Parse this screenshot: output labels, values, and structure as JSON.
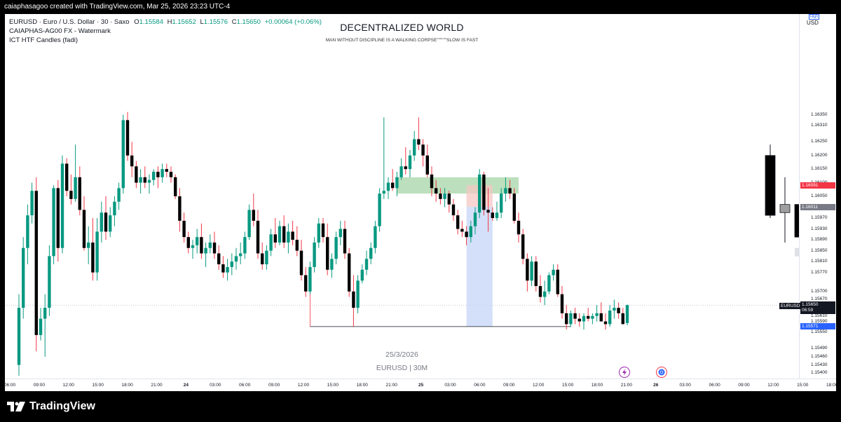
{
  "header": {
    "caption": "caiaphasagoo created with TradingView.com, Mar 25, 2026 23:23 UTC-4"
  },
  "legend": {
    "symbol": "EURUSD · Euro / U.S. Dollar · 30 · Saxo",
    "o_label": "O",
    "o_value": "1.15584",
    "h_label": "H",
    "h_value": "1.15652",
    "l_label": "L",
    "l_value": "1.15576",
    "c_label": "C",
    "c_value": "1.15650",
    "change": "+0.00064 (+0.06%)",
    "indicator1": "CAIAPHAS-AG00  FX - Watermark",
    "indicator2": "ICT HTF Candles (fadi)"
  },
  "watermark": {
    "title": "DECENTRALIZED WORLD",
    "subtitle": "MAN WITHOUT DISCIPLINE IS A WALKING CORPSE\"\"\"\"\"\"SLOW IS FAST",
    "date": "25/3/2026",
    "symbol_tf": "EURUSD | 30M"
  },
  "price_axis": {
    "currency": "USD",
    "high_badge": "High",
    "tags": {
      "red": {
        "value": "1.16091",
        "color": "#f23645"
      },
      "grey": {
        "value": "1.16011",
        "color": "#787b86"
      },
      "current_symbol": "EURUSD",
      "current_value": "1.15650",
      "countdown": "06:59",
      "blue": {
        "value": "1.15571",
        "color": "#2962ff"
      }
    }
  },
  "brand": {
    "name": "TradingView"
  },
  "events": [
    {
      "icon": "lightning-icon"
    },
    {
      "icon": "earnings-globe-icon"
    }
  ],
  "chart_data": {
    "type": "candlestick",
    "symbol": "EURUSD",
    "timeframe": "30",
    "colors": {
      "up": "#089981",
      "down": "#000000",
      "wick_up": "#089981",
      "wick_down": "#f23645",
      "htf_up": "#9e9e9e"
    },
    "ylim": [
      1.1538,
      1.1672
    ],
    "y_ticks": [
      "1.16350",
      "1.16310",
      "1.16250",
      "1.16200",
      "1.16150",
      "1.16100",
      "1.16050",
      "1.15970",
      "1.15930",
      "1.15890",
      "1.15850",
      "1.15810",
      "1.15770",
      "1.15700",
      "1.15670",
      "1.15610",
      "1.15590",
      "1.15550",
      "1.15490",
      "1.15460",
      "1.15430",
      "1.15400"
    ],
    "x_ticks": [
      "06:00",
      "09:00",
      "12:00",
      "15:00",
      "18:00",
      "21:00",
      "24",
      "03:00",
      "06:00",
      "09:00",
      "12:00",
      "15:00",
      "18:00",
      "21:00",
      "25",
      "03:00",
      "06:00",
      "09:00",
      "12:00",
      "15:00",
      "18:00",
      "21:00",
      "26",
      "03:00",
      "06:00",
      "09:00",
      "12:00",
      "15:00",
      "18:00"
    ],
    "x_ticks_bold": [
      "24",
      "25",
      "26"
    ],
    "candles": [
      [
        1.1543,
        1.1569,
        1.1539,
        1.1564
      ],
      [
        1.1564,
        1.159,
        1.156,
        1.1586
      ],
      [
        1.1586,
        1.1602,
        1.158,
        1.1598
      ],
      [
        1.1598,
        1.161,
        1.1595,
        1.1607
      ],
      [
        1.1607,
        1.1612,
        1.1548,
        1.1554
      ],
      [
        1.1554,
        1.1564,
        1.1552,
        1.156
      ],
      [
        1.156,
        1.1569,
        1.1546,
        1.1564
      ],
      [
        1.1564,
        1.1587,
        1.1561,
        1.1583
      ],
      [
        1.1583,
        1.1609,
        1.158,
        1.1608
      ],
      [
        1.1608,
        1.1611,
        1.1581,
        1.1586
      ],
      [
        1.1586,
        1.162,
        1.1584,
        1.1617
      ],
      [
        1.1617,
        1.1619,
        1.1605,
        1.1607
      ],
      [
        1.1607,
        1.1613,
        1.1602,
        1.1604
      ],
      [
        1.1604,
        1.1624,
        1.1603,
        1.1612
      ],
      [
        1.1612,
        1.1616,
        1.1598,
        1.16
      ],
      [
        1.16,
        1.1605,
        1.1585,
        1.1586
      ],
      [
        1.1586,
        1.1594,
        1.158,
        1.1588
      ],
      [
        1.1588,
        1.1597,
        1.1574,
        1.1577
      ],
      [
        1.1577,
        1.1597,
        1.1574,
        1.1592
      ],
      [
        1.1592,
        1.1603,
        1.1588,
        1.1599
      ],
      [
        1.1599,
        1.1605,
        1.1589,
        1.1592
      ],
      [
        1.1592,
        1.1601,
        1.159,
        1.1598
      ],
      [
        1.1598,
        1.1605,
        1.1594,
        1.1603
      ],
      [
        1.1603,
        1.161,
        1.16,
        1.1608
      ],
      [
        1.1608,
        1.1635,
        1.1606,
        1.1633
      ],
      [
        1.1633,
        1.1636,
        1.1618,
        1.162
      ],
      [
        1.162,
        1.1625,
        1.1612,
        1.1616
      ],
      [
        1.1616,
        1.1618,
        1.1608,
        1.161
      ],
      [
        1.161,
        1.1615,
        1.1606,
        1.1612
      ],
      [
        1.1612,
        1.1616,
        1.1608,
        1.161
      ],
      [
        1.161,
        1.1613,
        1.1606,
        1.1611
      ],
      [
        1.1611,
        1.1615,
        1.1609,
        1.1614
      ],
      [
        1.1614,
        1.1616,
        1.1608,
        1.1612
      ],
      [
        1.1612,
        1.1617,
        1.161,
        1.1615
      ],
      [
        1.1615,
        1.1617,
        1.1612,
        1.1614
      ],
      [
        1.1614,
        1.1616,
        1.161,
        1.1612
      ],
      [
        1.1612,
        1.1613,
        1.1604,
        1.1605
      ],
      [
        1.1605,
        1.1608,
        1.1592,
        1.1596
      ],
      [
        1.1596,
        1.1599,
        1.1588,
        1.159
      ],
      [
        1.159,
        1.1592,
        1.1584,
        1.1586
      ],
      [
        1.1586,
        1.1589,
        1.1582,
        1.1587
      ],
      [
        1.1587,
        1.1593,
        1.1584,
        1.159
      ],
      [
        1.159,
        1.1595,
        1.1582,
        1.1584
      ],
      [
        1.1584,
        1.1588,
        1.1579,
        1.1586
      ],
      [
        1.1586,
        1.1591,
        1.1584,
        1.1588
      ],
      [
        1.1588,
        1.1592,
        1.1582,
        1.1584
      ],
      [
        1.1584,
        1.1587,
        1.1578,
        1.158
      ],
      [
        1.158,
        1.1583,
        1.1575,
        1.1577
      ],
      [
        1.1577,
        1.1582,
        1.1574,
        1.1579
      ],
      [
        1.1579,
        1.1584,
        1.1576,
        1.1581
      ],
      [
        1.1581,
        1.1586,
        1.1578,
        1.1583
      ],
      [
        1.1583,
        1.1588,
        1.158,
        1.1584
      ],
      [
        1.1584,
        1.1592,
        1.1582,
        1.159
      ],
      [
        1.159,
        1.1602,
        1.1589,
        1.16
      ],
      [
        1.16,
        1.1606,
        1.1594,
        1.1596
      ],
      [
        1.1596,
        1.16,
        1.1582,
        1.1584
      ],
      [
        1.1584,
        1.1588,
        1.1578,
        1.158
      ],
      [
        1.158,
        1.1587,
        1.1578,
        1.1585
      ],
      [
        1.1585,
        1.1593,
        1.1583,
        1.1591
      ],
      [
        1.1591,
        1.1597,
        1.1586,
        1.1588
      ],
      [
        1.1588,
        1.1596,
        1.1587,
        1.1594
      ],
      [
        1.1594,
        1.1598,
        1.1586,
        1.1588
      ],
      [
        1.1588,
        1.1595,
        1.1584,
        1.1592
      ],
      [
        1.1592,
        1.1596,
        1.1587,
        1.1589
      ],
      [
        1.1589,
        1.1594,
        1.1583,
        1.1585
      ],
      [
        1.1585,
        1.1589,
        1.1574,
        1.1576
      ],
      [
        1.1576,
        1.1579,
        1.1568,
        1.157
      ],
      [
        1.157,
        1.1581,
        1.1569,
        1.1579
      ],
      [
        1.1579,
        1.159,
        1.1577,
        1.1588
      ],
      [
        1.1588,
        1.1597,
        1.1586,
        1.1595
      ],
      [
        1.1595,
        1.1597,
        1.1588,
        1.159
      ],
      [
        1.159,
        1.1595,
        1.1576,
        1.1578
      ],
      [
        1.1578,
        1.1584,
        1.1575,
        1.1582
      ],
      [
        1.1582,
        1.1592,
        1.158,
        1.159
      ],
      [
        1.159,
        1.1596,
        1.1587,
        1.1593
      ],
      [
        1.1593,
        1.1596,
        1.1582,
        1.1584
      ],
      [
        1.1584,
        1.1586,
        1.1568,
        1.157
      ],
      [
        1.157,
        1.1576,
        1.1557,
        1.1564
      ],
      [
        1.1564,
        1.1576,
        1.1562,
        1.1574
      ],
      [
        1.1574,
        1.158,
        1.1573,
        1.1578
      ],
      [
        1.1578,
        1.1585,
        1.1576,
        1.1582
      ],
      [
        1.1582,
        1.1588,
        1.158,
        1.1586
      ],
      [
        1.1586,
        1.1596,
        1.1584,
        1.1594
      ],
      [
        1.1594,
        1.1608,
        1.1592,
        1.1606
      ],
      [
        1.1606,
        1.1634,
        1.1604,
        1.1607
      ],
      [
        1.1607,
        1.1612,
        1.1604,
        1.161
      ],
      [
        1.161,
        1.1615,
        1.1607,
        1.1608
      ],
      [
        1.1608,
        1.1614,
        1.1605,
        1.1612
      ],
      [
        1.1612,
        1.1619,
        1.1611,
        1.1616
      ],
      [
        1.1616,
        1.1623,
        1.1613,
        1.1615
      ],
      [
        1.1615,
        1.1622,
        1.1612,
        1.162
      ],
      [
        1.162,
        1.1629,
        1.1618,
        1.1626
      ],
      [
        1.1626,
        1.1634,
        1.1622,
        1.1624
      ],
      [
        1.1624,
        1.1626,
        1.1616,
        1.162
      ],
      [
        1.162,
        1.1624,
        1.1612,
        1.1613
      ],
      [
        1.1613,
        1.1616,
        1.1605,
        1.1608
      ],
      [
        1.1608,
        1.1611,
        1.1603,
        1.1606
      ],
      [
        1.1606,
        1.1608,
        1.1602,
        1.1604
      ],
      [
        1.1604,
        1.1608,
        1.1601,
        1.1606
      ],
      [
        1.1606,
        1.1607,
        1.1599,
        1.1602
      ],
      [
        1.1602,
        1.1604,
        1.1596,
        1.1598
      ],
      [
        1.1598,
        1.16,
        1.1591,
        1.1593
      ],
      [
        1.1593,
        1.1596,
        1.159,
        1.1592
      ],
      [
        1.1592,
        1.1594,
        1.1587,
        1.159
      ],
      [
        1.159,
        1.1596,
        1.1588,
        1.1594
      ],
      [
        1.1594,
        1.1601,
        1.1591,
        1.1599
      ],
      [
        1.1599,
        1.1615,
        1.1597,
        1.1613
      ],
      [
        1.1613,
        1.1614,
        1.1598,
        1.16
      ],
      [
        1.16,
        1.1608,
        1.1592,
        1.1599
      ],
      [
        1.1599,
        1.1601,
        1.1596,
        1.1597
      ],
      [
        1.1597,
        1.1603,
        1.1596,
        1.1599
      ],
      [
        1.1599,
        1.1608,
        1.1597,
        1.1606
      ],
      [
        1.1606,
        1.1612,
        1.1603,
        1.1608
      ],
      [
        1.1608,
        1.1611,
        1.1604,
        1.1606
      ],
      [
        1.1606,
        1.1608,
        1.1595,
        1.1596
      ],
      [
        1.1596,
        1.1599,
        1.1588,
        1.1591
      ],
      [
        1.1591,
        1.1593,
        1.158,
        1.1582
      ],
      [
        1.1582,
        1.1584,
        1.157,
        1.1574
      ],
      [
        1.1574,
        1.1583,
        1.1572,
        1.1581
      ],
      [
        1.1581,
        1.1583,
        1.157,
        1.1572
      ],
      [
        1.1572,
        1.1576,
        1.1566,
        1.1568
      ],
      [
        1.1568,
        1.1574,
        1.1565,
        1.157
      ],
      [
        1.157,
        1.1577,
        1.1569,
        1.1576
      ],
      [
        1.1576,
        1.158,
        1.1574,
        1.1578
      ],
      [
        1.1578,
        1.158,
        1.1568,
        1.1569
      ],
      [
        1.1569,
        1.1572,
        1.156,
        1.1562
      ],
      [
        1.1562,
        1.1565,
        1.1556,
        1.1558
      ],
      [
        1.1558,
        1.1563,
        1.1557,
        1.1562
      ],
      [
        1.1562,
        1.1564,
        1.1558,
        1.156
      ],
      [
        1.156,
        1.1562,
        1.1557,
        1.1559
      ],
      [
        1.1559,
        1.1562,
        1.1556,
        1.1561
      ],
      [
        1.1561,
        1.1564,
        1.1559,
        1.156
      ],
      [
        1.156,
        1.1562,
        1.1558,
        1.1561
      ],
      [
        1.1561,
        1.1565,
        1.1559,
        1.1562
      ],
      [
        1.1562,
        1.1566,
        1.156,
        1.1559
      ],
      [
        1.1559,
        1.1562,
        1.1556,
        1.1558
      ],
      [
        1.1558,
        1.1565,
        1.1557,
        1.1563
      ],
      [
        1.1563,
        1.1567,
        1.156,
        1.1564
      ],
      [
        1.1564,
        1.1566,
        1.156,
        1.1562
      ],
      [
        1.1562,
        1.1564,
        1.1558,
        1.1558
      ],
      [
        1.15584,
        1.15652,
        1.15576,
        1.1565
      ]
    ],
    "htf_candles": [
      [
        1.162,
        1.1624,
        1.1597,
        1.1598
      ],
      [
        1.1599,
        1.1612,
        1.1588,
        1.1602
      ],
      [
        1.1602,
        1.1608,
        1.1586,
        1.159
      ]
    ],
    "zones": [
      {
        "kind": "supply",
        "top": 1.1612,
        "bottom": 1.1606,
        "color": "#a5d6a7"
      },
      {
        "kind": "short-risk",
        "top": 1.16091,
        "bottom": 1.16011,
        "color": "#f4c7c3"
      },
      {
        "kind": "short-target",
        "top": 1.16011,
        "bottom": 1.15571,
        "color": "#c5d6f7"
      }
    ],
    "levels": {
      "low_line": 1.15571,
      "current": 1.1565
    }
  }
}
